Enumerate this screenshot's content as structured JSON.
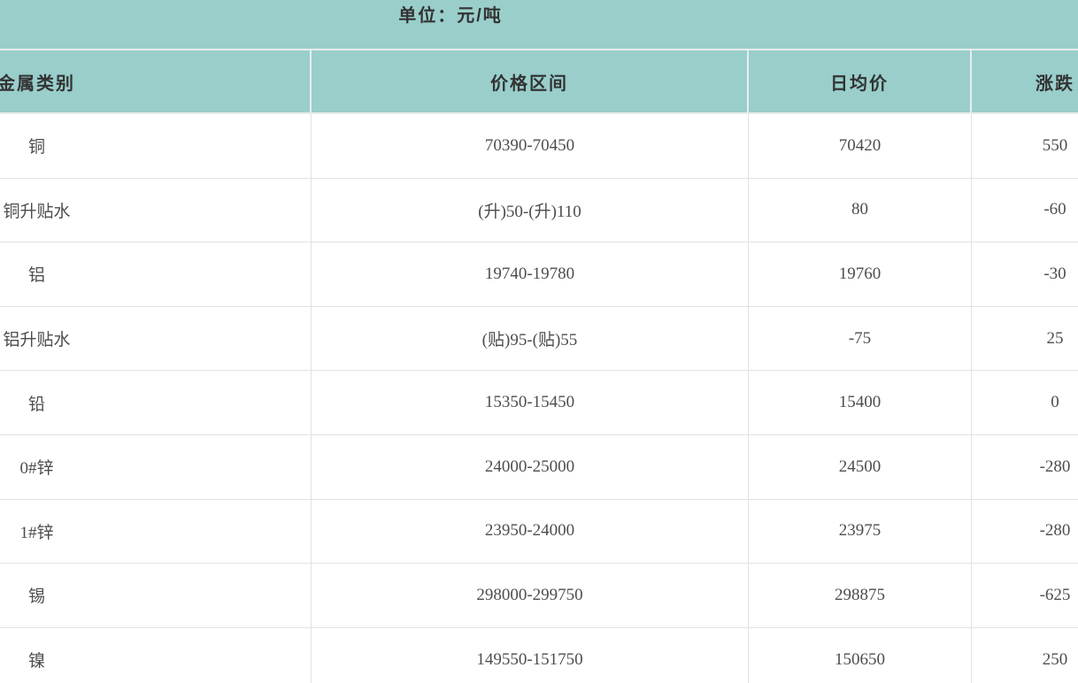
{
  "caption": {
    "unit_label": "单位：元/吨"
  },
  "colors": {
    "header_bg": "#99cecb",
    "header_divider": "#e7edec",
    "row_divider": "#e2e2e2",
    "header_text": "#333333",
    "cell_text": "#4d4d4d",
    "row_bg": "#ffffff"
  },
  "chart_data": {
    "type": "table",
    "title": "单位：元/吨",
    "columns": [
      "金属类别",
      "价格区间",
      "日均价",
      "涨跌"
    ],
    "rows": [
      [
        "铜",
        "70390-70450",
        "70420",
        "550"
      ],
      [
        "铜升贴水",
        "(升)50-(升)110",
        "80",
        "-60"
      ],
      [
        "铝",
        "19740-19780",
        "19760",
        "-30"
      ],
      [
        "铝升贴水",
        "(贴)95-(贴)55",
        "-75",
        "25"
      ],
      [
        "铅",
        "15350-15450",
        "15400",
        "0"
      ],
      [
        "0#锌",
        "24000-25000",
        "24500",
        "-280"
      ],
      [
        "1#锌",
        "23950-24000",
        "23975",
        "-280"
      ],
      [
        "锡",
        "298000-299750",
        "298875",
        "-625"
      ],
      [
        "镍",
        "149550-151750",
        "150650",
        "250"
      ]
    ],
    "layout_hints": {
      "clipped_edges": [
        "left",
        "right",
        "bottom"
      ],
      "grid": "on",
      "header_style": "teal-band"
    }
  }
}
